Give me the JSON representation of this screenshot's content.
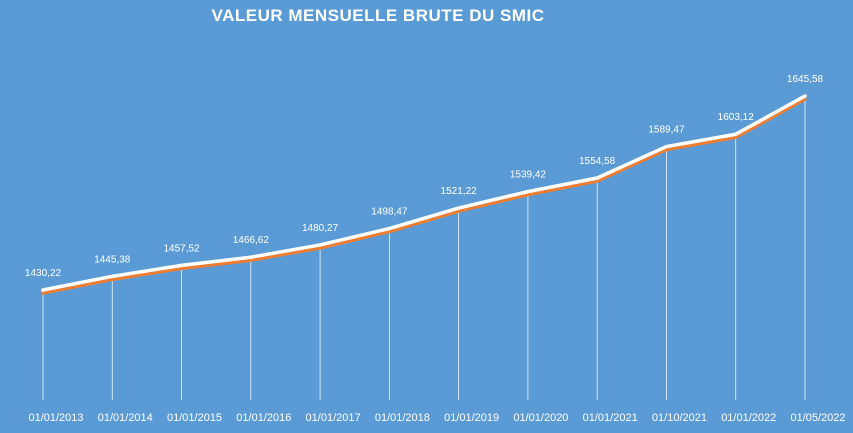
{
  "chart_data": {
    "type": "line",
    "title": "VALEUR MENSUELLE BRUTE DU SMIC",
    "xlabel": "",
    "ylabel": "",
    "categories": [
      "01/01/2013",
      "01/01/2014",
      "01/01/2015",
      "01/01/2016",
      "01/01/2017",
      "01/01/2018",
      "01/01/2019",
      "01/01/2020",
      "01/01/2021",
      "01/10/2021",
      "01/01/2022",
      "01/05/2022"
    ],
    "series": [
      {
        "values": [
          1430.22,
          1445.38,
          1457.52,
          1466.62,
          1480.27,
          1498.47,
          1521.22,
          1539.42,
          1554.58,
          1589.47,
          1603.12,
          1645.58
        ]
      }
    ],
    "data_labels": [
      "1430,22",
      "1445,38",
      "1457,52",
      "1466,62",
      "1480,27",
      "1498,47",
      "1521,22",
      "1539,42",
      "1554,58",
      "1589,47",
      "1603,12",
      "1645,58"
    ],
    "ylim": [
      1300,
      1680
    ],
    "grid": "vertical drop lines",
    "legend": "none",
    "colors": {
      "background": "#5b9bd5",
      "line": "#ffffff",
      "line_shadow": "#ed7d31",
      "drop_line": "#ffffff",
      "text": "#ffffff"
    }
  }
}
